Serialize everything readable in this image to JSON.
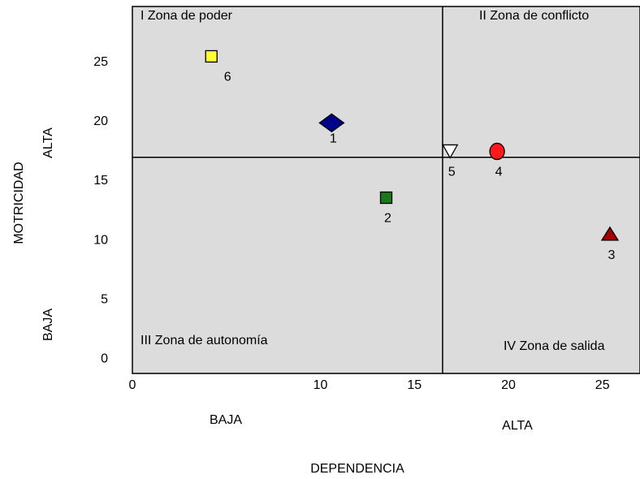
{
  "chart_data": {
    "type": "scatter",
    "x_label": "DEPENDENCIA",
    "y_label": "MOTRICIDAD",
    "x_low_label": "BAJA",
    "x_high_label": "ALTA",
    "y_low_label": "BAJA",
    "y_high_label": "ALTA",
    "quadrants": [
      "I Zona de poder",
      "II  Zona de conflicto",
      "III  Zona de autonomía",
      "IV  Zona de salida"
    ],
    "x_divider": 16.5,
    "y_divider": 17,
    "xlim": [
      0,
      27
    ],
    "xticks": [
      0,
      10,
      15,
      20,
      25
    ],
    "ylim": [
      -1.2,
      29.7
    ],
    "yticks": [
      0,
      5,
      10,
      15,
      20,
      25
    ],
    "background": "#dcdcdc",
    "points": [
      {
        "label": "1",
        "x": 10.6,
        "y": 19.9,
        "marker": "diamond",
        "color": "#00008b"
      },
      {
        "label": "2",
        "x": 13.5,
        "y": 13.6,
        "marker": "square",
        "color": "#1a7a1a"
      },
      {
        "label": "3",
        "x": 25.4,
        "y": 10.5,
        "marker": "triangle-up",
        "color": "#a00000"
      },
      {
        "label": "4",
        "x": 19.4,
        "y": 17.5,
        "marker": "circle",
        "color": "#ff1a1a"
      },
      {
        "label": "5",
        "x": 16.9,
        "y": 17.5,
        "marker": "triangle-down",
        "color": "#ffffff"
      },
      {
        "label": "6",
        "x": 4.2,
        "y": 25.5,
        "marker": "square",
        "color": "#ffff33"
      }
    ]
  }
}
